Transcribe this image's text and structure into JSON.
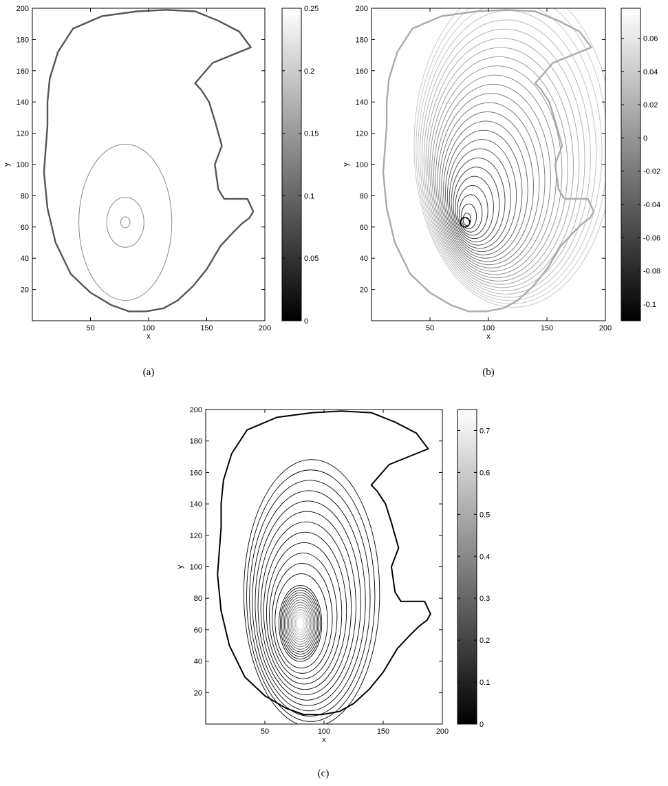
{
  "chart_data": [
    {
      "type": "contour",
      "caption": "(a)",
      "xlabel": "x",
      "ylabel": "y",
      "xlim": [
        0,
        200
      ],
      "ylim": [
        0,
        200
      ],
      "xticks": [
        "50",
        "100",
        "150",
        "200"
      ],
      "yticks": [
        "20",
        "40",
        "60",
        "80",
        "100",
        "120",
        "140",
        "160",
        "180",
        "200"
      ],
      "colorbar": {
        "range": [
          0,
          0.25
        ],
        "ticks": [
          "0",
          "0.05",
          "0.1",
          "0.15",
          "0.2",
          "0.25"
        ],
        "tick_values": [
          0,
          0.05,
          0.1,
          0.15,
          0.2,
          0.25
        ]
      },
      "boundary_color": "#555555",
      "contour_color": "#888888",
      "center": [
        80,
        63
      ],
      "contours": [
        {
          "rx": 4,
          "ry": 3.5
        },
        {
          "rx": 16,
          "ry": 16
        },
        {
          "rx": 40,
          "ry": 50
        }
      ]
    },
    {
      "type": "contour",
      "caption": "(b)",
      "xlabel": "x",
      "ylabel": "y",
      "xlim": [
        0,
        200
      ],
      "ylim": [
        0,
        200
      ],
      "xticks": [
        "50",
        "100",
        "150",
        "200"
      ],
      "yticks": [
        "20",
        "40",
        "60",
        "80",
        "100",
        "120",
        "140",
        "160",
        "180",
        "200"
      ],
      "colorbar": {
        "range": [
          -0.11,
          0.078
        ],
        "ticks": [
          "-0.1",
          "-0.08",
          "-0.06",
          "-0.04",
          "-0.02",
          "0",
          "0.02",
          "0.04",
          "0.06"
        ],
        "tick_values": [
          -0.1,
          -0.08,
          -0.06,
          -0.04,
          -0.02,
          0,
          0.02,
          0.04,
          0.06
        ]
      },
      "boundary_color": "#aaaaaa",
      "contour_color": "#555555",
      "center": [
        80,
        63
      ]
    },
    {
      "type": "contour",
      "caption": "(c)",
      "xlabel": "x",
      "ylabel": "y",
      "xlim": [
        0,
        200
      ],
      "ylim": [
        0,
        200
      ],
      "xticks": [
        "50",
        "100",
        "150",
        "200"
      ],
      "yticks": [
        "20",
        "40",
        "60",
        "80",
        "100",
        "120",
        "140",
        "160",
        "180",
        "200"
      ],
      "colorbar": {
        "range": [
          0,
          0.75
        ],
        "ticks": [
          "0",
          "0.1",
          "0.2",
          "0.3",
          "0.4",
          "0.5",
          "0.6",
          "0.7"
        ],
        "tick_values": [
          0,
          0.1,
          0.2,
          0.3,
          0.4,
          0.5,
          0.6,
          0.7
        ]
      },
      "boundary_color": "#000000",
      "contour_color": "#000000",
      "center": [
        80,
        64
      ]
    }
  ],
  "boundary_shape": [
    [
      13,
      125
    ],
    [
      10,
      95
    ],
    [
      13,
      72
    ],
    [
      20,
      50
    ],
    [
      33,
      30
    ],
    [
      50,
      18
    ],
    [
      68,
      10
    ],
    [
      83,
      6
    ],
    [
      98,
      6
    ],
    [
      113,
      8
    ],
    [
      125,
      13
    ],
    [
      138,
      22
    ],
    [
      150,
      33
    ],
    [
      162,
      48
    ],
    [
      172,
      56
    ],
    [
      180,
      62
    ],
    [
      187,
      66
    ],
    [
      190,
      70
    ],
    [
      185,
      78
    ],
    [
      175,
      78
    ],
    [
      165,
      78
    ],
    [
      160,
      84
    ],
    [
      157,
      100
    ],
    [
      163,
      112
    ],
    [
      157,
      128
    ],
    [
      152,
      140
    ],
    [
      145,
      148
    ],
    [
      140,
      152
    ],
    [
      155,
      165
    ],
    [
      178,
      172
    ],
    [
      188,
      175
    ],
    [
      178,
      185
    ],
    [
      160,
      192
    ],
    [
      140,
      198
    ],
    [
      115,
      199
    ],
    [
      90,
      198
    ],
    [
      60,
      195
    ],
    [
      35,
      187
    ],
    [
      22,
      172
    ],
    [
      15,
      155
    ],
    [
      13,
      140
    ]
  ]
}
